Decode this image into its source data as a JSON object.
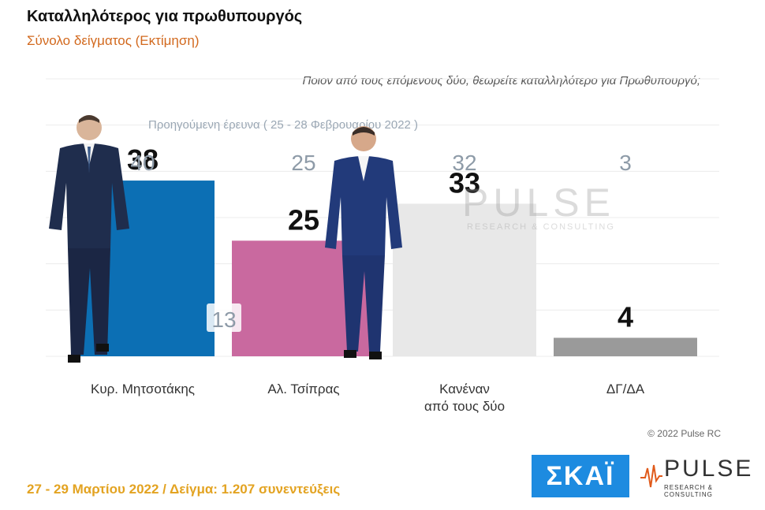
{
  "title": "Καταλληλότερος για πρωθυπουργός",
  "subtitle": "Σύνολο δείγματος   (Εκτίμηση)",
  "question": "Ποιον από τους επόμενους δύο, θεωρείτε καταλληλότερο για Πρωθυπουργό;",
  "previous_label": "Προηγούμενη έρευνα  ( 25 - 28 Φεβρουαρίου  2022 )",
  "copyright": "© 2022 Pulse RC",
  "footer": "27 - 29  Μαρτίου  2022  /  Δείγμα:  1.207 συνεντεύξεις",
  "logos": {
    "skai": "ΣΚΑΪ",
    "pulse": "PULSE",
    "pulse_sub": "RESEARCH & CONSULTING"
  },
  "watermark": {
    "name": "PULSE",
    "sub": "RESEARCH & CONSULTING"
  },
  "colors": {
    "blue": "#0c6fb4",
    "pink": "#c9699f",
    "light_gray": "#e8e8e8",
    "dark_gray": "#9a9a9a",
    "accent": "#d2691e"
  },
  "chart_data": {
    "type": "bar",
    "categories": [
      "Κυρ. Μητσοτάκης",
      "Αλ. Τσίπρας",
      "Κανέναν από τους δύο",
      "ΔΓ/ΔΑ"
    ],
    "category_lines": [
      [
        "Κυρ. Μητσοτάκης"
      ],
      [
        "Αλ. Τσίπρας"
      ],
      [
        "Κανέναν",
        "από τους δύο"
      ],
      [
        "ΔΓ/ΔΑ"
      ]
    ],
    "values": [
      38,
      25,
      33,
      4
    ],
    "previous_values": [
      40,
      25,
      32,
      3
    ],
    "difference_label": "13",
    "bar_colors": [
      "#0c6fb4",
      "#c9699f",
      "#e8e8e8",
      "#9a9a9a"
    ],
    "ylim": [
      0,
      60
    ],
    "grid": true
  }
}
